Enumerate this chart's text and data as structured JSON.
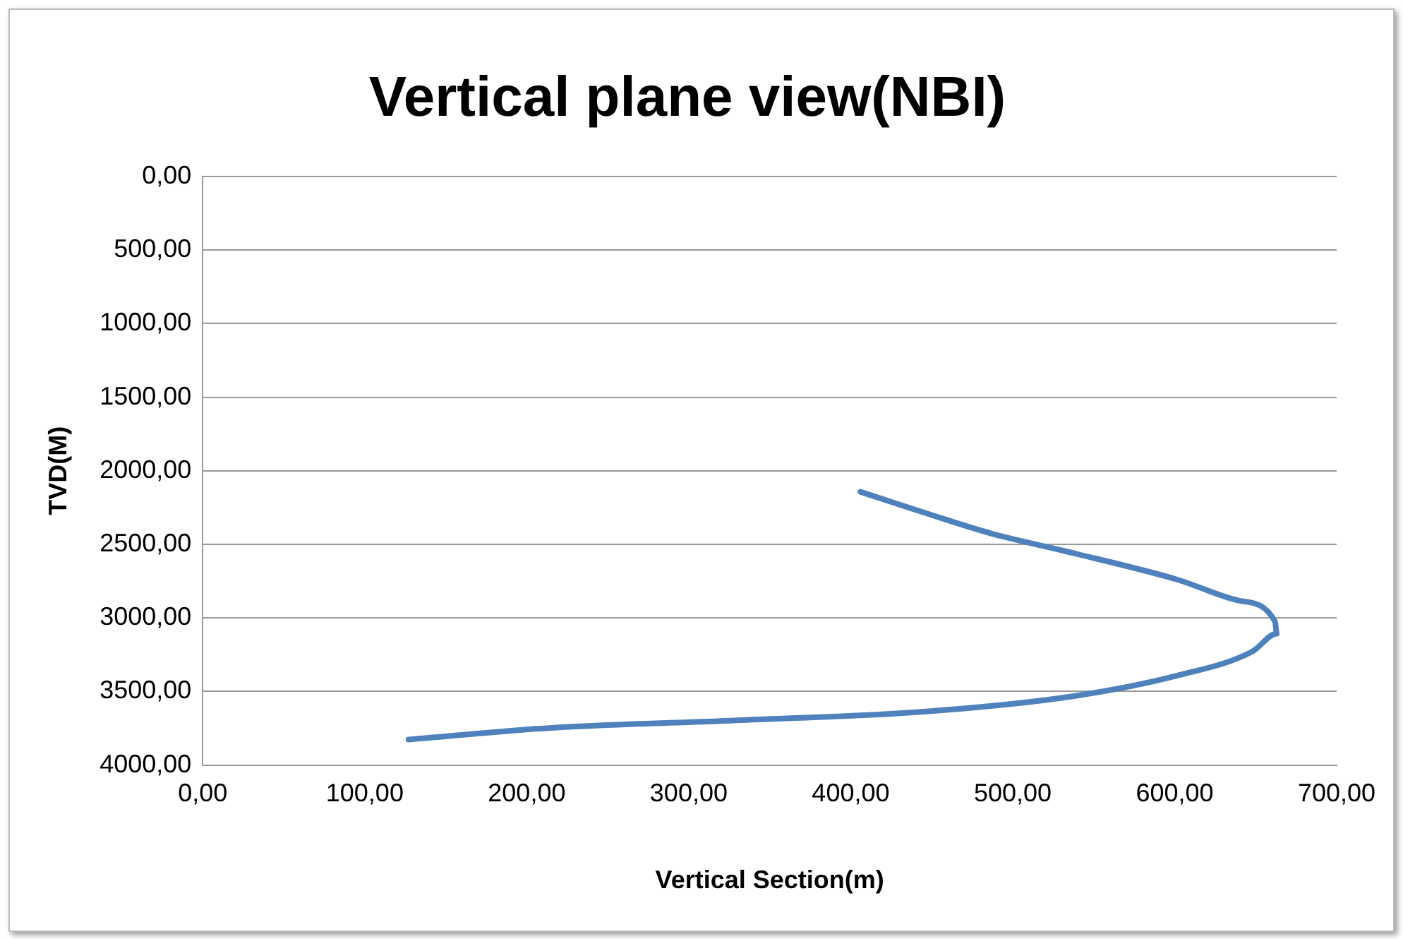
{
  "chart_data": {
    "type": "line",
    "title": "Vertical plane view(NBI)",
    "xlabel": "Vertical Section(m)",
    "ylabel": "TVD(M)",
    "series": [
      {
        "color": "#4f81bd",
        "x": [
          406,
          448,
          487,
          533,
          602,
          640,
          662,
          663,
          648,
          602,
          537,
          448,
          333,
          217,
          127
        ],
        "values": [
          2143,
          2294,
          2427,
          2548,
          2741,
          2883,
          3025,
          3107,
          3228,
          3391,
          3533,
          3635,
          3695,
          3746,
          3827
        ]
      }
    ],
    "xlim": [
      0,
      700
    ],
    "xticks": [
      {
        "value": 0,
        "label": "0,00"
      },
      {
        "value": 100,
        "label": "100,00"
      },
      {
        "value": 200,
        "label": "200,00"
      },
      {
        "value": 300,
        "label": "300,00"
      },
      {
        "value": 400,
        "label": "400,00"
      },
      {
        "value": 500,
        "label": "500,00"
      },
      {
        "value": 600,
        "label": "600,00"
      },
      {
        "value": 700,
        "label": "700,00"
      }
    ],
    "ylim": [
      4000,
      0
    ],
    "yticks": [
      {
        "value": 0,
        "label": "0,00"
      },
      {
        "value": 500,
        "label": "500,00"
      },
      {
        "value": 1000,
        "label": "1000,00"
      },
      {
        "value": 1500,
        "label": "1500,00"
      },
      {
        "value": 2000,
        "label": "2000,00"
      },
      {
        "value": 2500,
        "label": "2500,00"
      },
      {
        "value": 3000,
        "label": "3000,00"
      },
      {
        "value": 3500,
        "label": "3500,00"
      },
      {
        "value": 4000,
        "label": "4000,00"
      }
    ],
    "grid": "y",
    "legend": false,
    "marker": "none",
    "line_style": "solid"
  }
}
